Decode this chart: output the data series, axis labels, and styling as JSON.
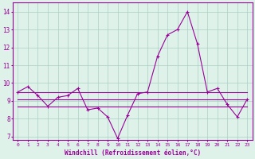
{
  "xlabel": "Windchill (Refroidissement éolien,°C)",
  "x_values": [
    0,
    1,
    2,
    3,
    4,
    5,
    6,
    7,
    8,
    9,
    10,
    11,
    12,
    13,
    14,
    15,
    16,
    17,
    18,
    19,
    20,
    21,
    22,
    23
  ],
  "line_main": [
    9.5,
    9.8,
    9.3,
    8.7,
    9.2,
    9.3,
    9.7,
    8.5,
    8.6,
    8.1,
    6.9,
    8.2,
    9.4,
    9.5,
    11.5,
    12.7,
    13.0,
    14.0,
    12.2,
    9.5,
    9.7,
    8.8,
    8.1,
    9.1
  ],
  "flat_lines": [
    {
      "x_start": 0,
      "x_end": 23,
      "y": 9.5
    },
    {
      "x_start": 0,
      "x_end": 23,
      "y": 9.1
    },
    {
      "x_start": 0,
      "x_end": 23,
      "y": 8.7
    }
  ],
  "line_color": "#990099",
  "bg_color": "#dff2ea",
  "grid_color": "#aacfc4",
  "ylim": [
    6.8,
    14.5
  ],
  "yticks": [
    7,
    8,
    9,
    10,
    11,
    12,
    13,
    14
  ],
  "xticks": [
    0,
    1,
    2,
    3,
    4,
    5,
    6,
    7,
    8,
    9,
    10,
    11,
    12,
    13,
    14,
    15,
    16,
    17,
    18,
    19,
    20,
    21,
    22,
    23
  ],
  "marker": "+"
}
